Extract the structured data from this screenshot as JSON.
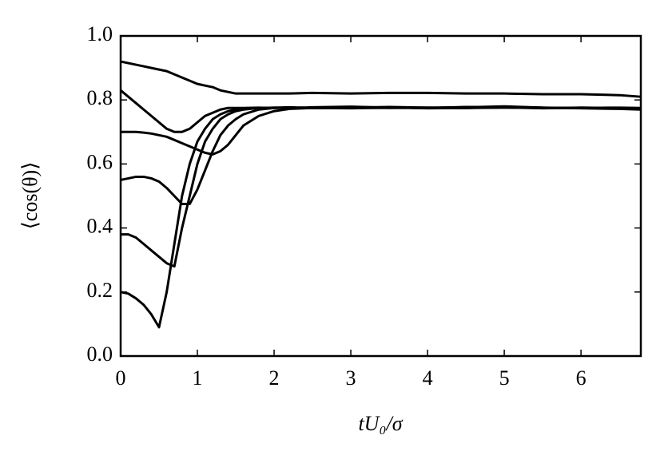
{
  "chart_data": {
    "type": "line",
    "xlabel": "tU₀/σ",
    "ylabel": "⟨cos(θ)⟩",
    "x": [
      0,
      0.1,
      0.2,
      0.3,
      0.4,
      0.5,
      0.6,
      0.7,
      0.8,
      0.9,
      1.0,
      1.1,
      1.2,
      1.3,
      1.4,
      1.5,
      1.6,
      1.8,
      2.0,
      2.2,
      2.5,
      3,
      3.5,
      4,
      4.5,
      5,
      5.5,
      6,
      6.5,
      6.78
    ],
    "series": [
      {
        "color": "#000000",
        "values": [
          0.92,
          0.915,
          0.91,
          0.905,
          0.9,
          0.895,
          0.89,
          0.88,
          0.87,
          0.86,
          0.85,
          0.845,
          0.84,
          0.83,
          0.825,
          0.82,
          0.82,
          0.82,
          0.82,
          0.82,
          0.822,
          0.82,
          0.822,
          0.822,
          0.82,
          0.82,
          0.818,
          0.818,
          0.815,
          0.81
        ]
      },
      {
        "color": "#000000",
        "values": [
          0.83,
          0.81,
          0.79,
          0.77,
          0.75,
          0.73,
          0.71,
          0.7,
          0.7,
          0.71,
          0.73,
          0.75,
          0.76,
          0.77,
          0.775,
          0.775,
          0.775,
          0.776,
          0.775,
          0.776,
          0.775,
          0.776,
          0.775,
          0.776,
          0.775,
          0.776,
          0.775,
          0.776,
          0.775,
          0.774
        ]
      },
      {
        "color": "#000000",
        "values": [
          0.7,
          0.7,
          0.7,
          0.698,
          0.695,
          0.69,
          0.685,
          0.675,
          0.665,
          0.655,
          0.645,
          0.635,
          0.63,
          0.64,
          0.66,
          0.69,
          0.72,
          0.75,
          0.765,
          0.772,
          0.775,
          0.774,
          0.776,
          0.774,
          0.775,
          0.777,
          0.774,
          0.776,
          0.775,
          0.773
        ]
      },
      {
        "color": "#000000",
        "values": [
          0.55,
          0.555,
          0.56,
          0.56,
          0.555,
          0.545,
          0.525,
          0.5,
          0.475,
          0.475,
          0.52,
          0.58,
          0.64,
          0.69,
          0.72,
          0.74,
          0.755,
          0.77,
          0.775,
          0.776,
          0.775,
          0.778,
          0.776,
          0.775,
          0.778,
          0.777,
          0.776,
          0.774,
          0.772,
          0.77
        ]
      },
      {
        "color": "#000000",
        "values": [
          0.38,
          0.38,
          0.37,
          0.35,
          0.33,
          0.31,
          0.29,
          0.28,
          0.4,
          0.5,
          0.6,
          0.67,
          0.71,
          0.74,
          0.755,
          0.765,
          0.77,
          0.775,
          0.776,
          0.775,
          0.777,
          0.779,
          0.776,
          0.776,
          0.777,
          0.78,
          0.776,
          0.775,
          0.774,
          0.772
        ]
      },
      {
        "color": "#000000",
        "values": [
          0.2,
          0.195,
          0.18,
          0.16,
          0.13,
          0.09,
          0.2,
          0.35,
          0.5,
          0.6,
          0.67,
          0.71,
          0.74,
          0.755,
          0.765,
          0.77,
          0.772,
          0.775,
          0.776,
          0.777,
          0.775,
          0.776,
          0.778,
          0.776,
          0.775,
          0.779,
          0.776,
          0.775,
          0.776,
          0.775
        ]
      }
    ],
    "xlim": [
      0,
      6.78
    ],
    "xticks": [
      0,
      1,
      2,
      3,
      4,
      5,
      6
    ],
    "ylim": [
      0,
      1
    ],
    "yticks": [
      {
        "value": 0,
        "label": "0.0"
      },
      {
        "value": 0.2,
        "label": "0.2"
      },
      {
        "value": 0.4,
        "label": "0.4"
      },
      {
        "value": 0.6,
        "label": "0.6"
      },
      {
        "value": 0.8,
        "label": "0.8"
      },
      {
        "value": 1,
        "label": "1.0"
      }
    ],
    "grid": false
  }
}
